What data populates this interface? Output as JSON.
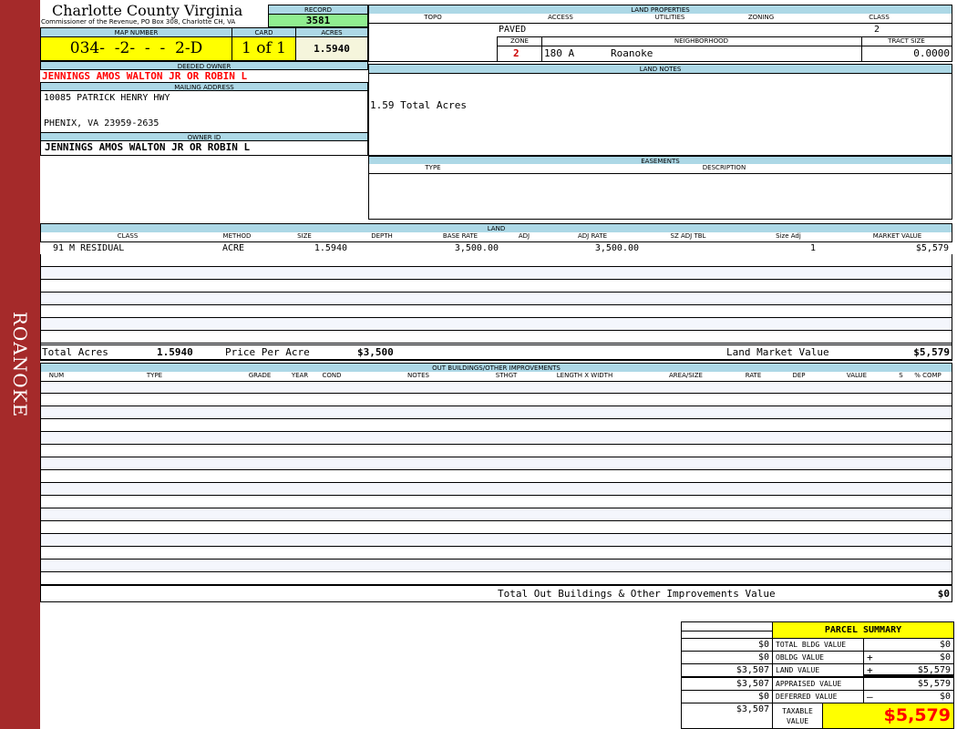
{
  "sidebar": {
    "label": "ROANOKE",
    "color": "#a52a2a"
  },
  "header": {
    "title": "Charlotte County Virginia",
    "subtitle": "Commissioner of the Revenue, PO Box 308, Charlotte CH, VA"
  },
  "record": {
    "label": "RECORD",
    "value": "3581"
  },
  "map_number": {
    "label": "MAP NUMBER",
    "value": "034-  -2-  -  -  2-D"
  },
  "card": {
    "label": "CARD",
    "value": "1 of 1"
  },
  "acres": {
    "label": "ACRES",
    "value": "1.5940"
  },
  "deeded_owner": {
    "label": "DEEDED OWNER",
    "value": "JENNINGS AMOS WALTON JR OR ROBIN L"
  },
  "mailing_address": {
    "label": "MAILING ADDRESS",
    "line1": "10085 PATRICK HENRY HWY",
    "line2": "",
    "line3": "PHENIX, VA 23959-2635"
  },
  "owner_id": {
    "label": "OWNER ID",
    "value": "JENNINGS AMOS WALTON JR OR ROBIN L"
  },
  "land_properties": {
    "label": "LAND PROPERTIES",
    "columns": [
      "TOPO",
      "ACCESS",
      "UTILITIES",
      "ZONING",
      "CLASS"
    ],
    "access": "PAVED",
    "class": "2",
    "zone_label": "ZONE",
    "neighborhood_label": "NEIGHBORHOOD",
    "tract_size_label": "TRACT SIZE",
    "zone": "2",
    "neighborhood_code": "180 A",
    "neighborhood": "Roanoke",
    "tract_size": "0.0000"
  },
  "land_notes": {
    "label": "LAND NOTES",
    "text": "1.59 Total Acres"
  },
  "easements": {
    "label": "EASEMENTS",
    "columns": [
      "TYPE",
      "DESCRIPTION"
    ]
  },
  "land": {
    "label": "LAND",
    "columns": [
      "CLASS",
      "METHOD",
      "SIZE",
      "DEPTH",
      "BASE RATE",
      "ADJ",
      "ADJ RATE",
      "SZ ADJ TBL",
      "Size Adj",
      "MARKET VALUE"
    ],
    "rows": [
      {
        "class": "91 M RESIDUAL",
        "method": "ACRE",
        "size": "1.5940",
        "depth": "",
        "base_rate": "3,500.00",
        "adj": "",
        "adj_rate": "3,500.00",
        "sz_adj_tbl": "",
        "size_adj": "1",
        "market_value": "$5,579"
      }
    ],
    "total_acres_label": "Total Acres",
    "total_acres": "1.5940",
    "price_per_acre_label": "Price Per Acre",
    "price_per_acre": "$3,500",
    "land_market_value_label": "Land Market Value",
    "land_market_value": "$5,579"
  },
  "outbuildings": {
    "label": "OUT BUILDINGS/OTHER IMPROVEMENTS",
    "columns": [
      "NUM",
      "TYPE",
      "GRADE",
      "YEAR",
      "COND",
      "NOTES",
      "STHGT",
      "LENGTH X WIDTH",
      "AREA/SIZE",
      "RATE",
      "DEP",
      "VALUE",
      "S",
      "% COMP"
    ],
    "total_label": "Total Out Buildings & Other Improvements Value",
    "total": "$0"
  },
  "parcel_summary": {
    "title": "PARCEL SUMMARY",
    "rows": [
      {
        "prior": "$0",
        "label": "TOTAL BLDG VALUE",
        "op": "",
        "value": "$0"
      },
      {
        "prior": "$0",
        "label": "OBLDG VALUE",
        "op": "+",
        "value": "$0"
      },
      {
        "prior": "$3,507",
        "label": "LAND VALUE",
        "op": "+",
        "value": "$5,579"
      },
      {
        "prior": "$3,507",
        "label": "APPRAISED VALUE",
        "op": "",
        "value": "$5,579"
      },
      {
        "prior": "$0",
        "label": "DEFERRED VALUE",
        "op": "–",
        "value": "$0"
      }
    ],
    "taxable_prior": "$3,507",
    "taxable_label": "TAXABLE VALUE",
    "taxable_value": "$5,579"
  },
  "colors": {
    "header_blue": "#add8e6",
    "highlight_yellow": "#ffff00",
    "record_green": "#90ee90",
    "owner_red": "#ff0000"
  }
}
